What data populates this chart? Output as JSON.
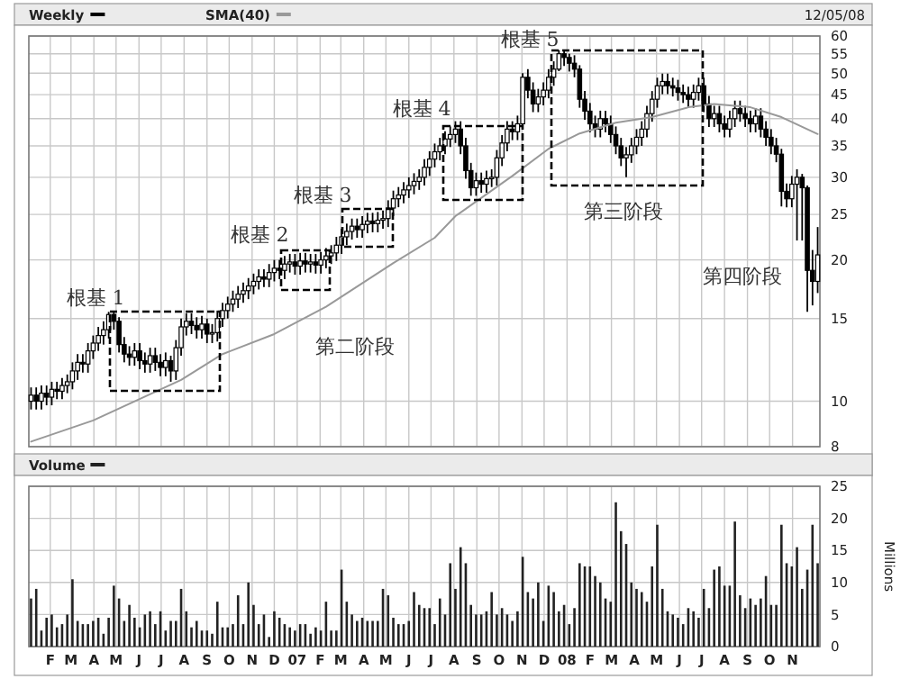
{
  "chart_data": [
    {
      "type": "candlestick",
      "log": true,
      "legend": "top left",
      "grid": true,
      "tick_labels": "y",
      "xlim": [
        "2006-01-03",
        "2008-12-08"
      ],
      "xticks": [
        {
          "value": "2006-02-01",
          "label": null
        },
        {
          "value": "2006-03-01",
          "label": null
        },
        {
          "value": "2006-04-01",
          "label": null
        },
        {
          "value": "2006-05-01",
          "label": null
        },
        {
          "value": "2006-06-01",
          "label": null
        },
        {
          "value": "2006-07-01",
          "label": null
        },
        {
          "value": "2006-08-01",
          "label": null
        },
        {
          "value": "2006-09-01",
          "label": null
        },
        {
          "value": "2006-10-01",
          "label": null
        },
        {
          "value": "2006-11-01",
          "label": null
        },
        {
          "value": "2006-12-01",
          "label": null
        },
        {
          "value": "2007-01-01",
          "label": null
        },
        {
          "value": "2007-02-01",
          "label": null
        },
        {
          "value": "2007-03-01",
          "label": null
        },
        {
          "value": "2007-04-01",
          "label": null
        },
        {
          "value": "2007-05-01",
          "label": null
        },
        {
          "value": "2007-06-01",
          "label": null
        },
        {
          "value": "2007-07-01",
          "label": null
        },
        {
          "value": "2007-08-01",
          "label": null
        },
        {
          "value": "2007-09-01",
          "label": null
        },
        {
          "value": "2007-10-01",
          "label": null
        },
        {
          "value": "2007-11-01",
          "label": null
        },
        {
          "value": "2007-12-01",
          "label": null
        },
        {
          "value": "2008-01-01",
          "label": null
        },
        {
          "value": "2008-02-01",
          "label": null
        },
        {
          "value": "2008-03-01",
          "label": null
        },
        {
          "value": "2008-04-01",
          "label": null
        },
        {
          "value": "2008-05-01",
          "label": null
        },
        {
          "value": "2008-06-01",
          "label": null
        },
        {
          "value": "2008-07-01",
          "label": null
        },
        {
          "value": "2008-08-01",
          "label": null
        },
        {
          "value": "2008-09-01",
          "label": null
        },
        {
          "value": "2008-10-01",
          "label": null
        },
        {
          "value": "2008-11-01",
          "label": null
        }
      ],
      "ylim": [
        8,
        60
      ],
      "yticks": [
        8,
        10,
        15,
        20,
        25,
        30,
        35,
        40,
        45,
        50,
        55,
        60
      ],
      "x": [
        "2006-01-06",
        "2006-01-13",
        "2006-01-20",
        "2006-01-27",
        "2006-02-03",
        "2006-02-10",
        "2006-02-17",
        "2006-02-24",
        "2006-03-03",
        "2006-03-10",
        "2006-03-17",
        "2006-03-24",
        "2006-03-31",
        "2006-04-07",
        "2006-04-14",
        "2006-04-21",
        "2006-04-28",
        "2006-05-05",
        "2006-05-12",
        "2006-05-19",
        "2006-05-26",
        "2006-06-02",
        "2006-06-09",
        "2006-06-16",
        "2006-06-23",
        "2006-06-30",
        "2006-07-07",
        "2006-07-14",
        "2006-07-21",
        "2006-07-28",
        "2006-08-04",
        "2006-08-11",
        "2006-08-18",
        "2006-08-25",
        "2006-09-01",
        "2006-09-08",
        "2006-09-15",
        "2006-09-22",
        "2006-09-29",
        "2006-10-06",
        "2006-10-13",
        "2006-10-20",
        "2006-10-27",
        "2006-11-03",
        "2006-11-10",
        "2006-11-17",
        "2006-11-24",
        "2006-12-01",
        "2006-12-08",
        "2006-12-15",
        "2006-12-22",
        "2006-12-29",
        "2007-01-05",
        "2007-01-12",
        "2007-01-19",
        "2007-01-26",
        "2007-02-02",
        "2007-02-09",
        "2007-02-16",
        "2007-02-23",
        "2007-03-02",
        "2007-03-09",
        "2007-03-16",
        "2007-03-23",
        "2007-03-30",
        "2007-04-06",
        "2007-04-13",
        "2007-04-20",
        "2007-04-27",
        "2007-05-04",
        "2007-05-11",
        "2007-05-18",
        "2007-05-25",
        "2007-06-01",
        "2007-06-08",
        "2007-06-15",
        "2007-06-22",
        "2007-06-29",
        "2007-07-06",
        "2007-07-13",
        "2007-07-20",
        "2007-07-27",
        "2007-08-03",
        "2007-08-10",
        "2007-08-17",
        "2007-08-24",
        "2007-08-31",
        "2007-09-07",
        "2007-09-14",
        "2007-09-21",
        "2007-09-28",
        "2007-10-05",
        "2007-10-12",
        "2007-10-19",
        "2007-10-26",
        "2007-11-02",
        "2007-11-09",
        "2007-11-16",
        "2007-11-23",
        "2007-11-30",
        "2007-12-07",
        "2007-12-14",
        "2007-12-21",
        "2007-12-28",
        "2008-01-04",
        "2008-01-11",
        "2008-01-18",
        "2008-01-25",
        "2008-02-01",
        "2008-02-08",
        "2008-02-15",
        "2008-02-22",
        "2008-02-29",
        "2008-03-07",
        "2008-03-14",
        "2008-03-21",
        "2008-03-28",
        "2008-04-04",
        "2008-04-11",
        "2008-04-18",
        "2008-04-25",
        "2008-05-02",
        "2008-05-09",
        "2008-05-16",
        "2008-05-23",
        "2008-05-30",
        "2008-06-06",
        "2008-06-13",
        "2008-06-20",
        "2008-06-27",
        "2008-07-04",
        "2008-07-11",
        "2008-07-18",
        "2008-07-25",
        "2008-08-01",
        "2008-08-08",
        "2008-08-15",
        "2008-08-22",
        "2008-08-29",
        "2008-09-05",
        "2008-09-12",
        "2008-09-19",
        "2008-09-26",
        "2008-10-03",
        "2008-10-10",
        "2008-10-17",
        "2008-10-24",
        "2008-10-31",
        "2008-11-07",
        "2008-11-14",
        "2008-11-21",
        "2008-11-28",
        "2008-12-05"
      ],
      "series": [
        {
          "name": "Weekly",
          "color": "#000000",
          "ohlc": [
            [
              10.0,
              10.7,
              9.6,
              10.3
            ],
            [
              10.3,
              10.7,
              9.6,
              10.0
            ],
            [
              10.0,
              10.8,
              9.6,
              10.4
            ],
            [
              10.4,
              10.8,
              9.8,
              10.2
            ],
            [
              10.2,
              11.0,
              9.8,
              10.6
            ],
            [
              10.6,
              11.0,
              10.1,
              10.5
            ],
            [
              10.5,
              11.2,
              10.1,
              10.8
            ],
            [
              10.8,
              11.4,
              10.4,
              11.0
            ],
            [
              11.0,
              12.1,
              10.6,
              11.6
            ],
            [
              11.6,
              12.6,
              11.1,
              12.1
            ],
            [
              12.1,
              12.6,
              11.5,
              12.0
            ],
            [
              12.0,
              13.3,
              11.5,
              12.8
            ],
            [
              12.8,
              13.8,
              12.3,
              13.3
            ],
            [
              13.3,
              14.4,
              12.8,
              13.8
            ],
            [
              13.8,
              14.8,
              13.2,
              14.2
            ],
            [
              14.2,
              15.5,
              13.6,
              15.3
            ],
            [
              15.3,
              15.5,
              14.2,
              14.8
            ],
            [
              14.8,
              15.1,
              12.7,
              13.2
            ],
            [
              13.2,
              13.7,
              12.1,
              12.6
            ],
            [
              12.6,
              13.1,
              11.9,
              12.4
            ],
            [
              12.4,
              13.3,
              11.9,
              12.8
            ],
            [
              12.8,
              13.3,
              11.7,
              12.2
            ],
            [
              12.2,
              12.7,
              11.5,
              12.0
            ],
            [
              12.0,
              13.0,
              11.5,
              12.5
            ],
            [
              12.5,
              13.0,
              11.6,
              12.1
            ],
            [
              12.1,
              12.6,
              11.3,
              11.8
            ],
            [
              11.8,
              12.7,
              11.3,
              12.2
            ],
            [
              12.2,
              12.5,
              11.0,
              11.6
            ],
            [
              11.6,
              13.5,
              11.1,
              13.0
            ],
            [
              13.0,
              15.0,
              12.5,
              14.4
            ],
            [
              14.4,
              15.4,
              13.8,
              14.8
            ],
            [
              14.8,
              15.4,
              13.9,
              14.5
            ],
            [
              14.5,
              15.1,
              13.6,
              14.2
            ],
            [
              14.2,
              15.2,
              13.6,
              14.6
            ],
            [
              14.6,
              15.0,
              13.3,
              13.9
            ],
            [
              13.9,
              14.6,
              13.3,
              14.0
            ],
            [
              14.0,
              15.6,
              13.4,
              15.0
            ],
            [
              15.0,
              16.2,
              14.4,
              15.6
            ],
            [
              15.6,
              16.7,
              15.0,
              16.1
            ],
            [
              16.1,
              17.2,
              15.5,
              16.5
            ],
            [
              16.5,
              17.6,
              15.8,
              16.9
            ],
            [
              16.9,
              17.9,
              16.2,
              17.2
            ],
            [
              17.2,
              18.3,
              16.5,
              17.6
            ],
            [
              17.6,
              18.7,
              16.9,
              18.0
            ],
            [
              18.0,
              19.1,
              17.3,
              18.4
            ],
            [
              18.4,
              19.1,
              17.5,
              18.2
            ],
            [
              18.2,
              19.6,
              17.5,
              18.8
            ],
            [
              18.8,
              20.0,
              18.0,
              19.2
            ],
            [
              19.2,
              20.0,
              18.2,
              19.0
            ],
            [
              19.0,
              20.4,
              18.2,
              19.6
            ],
            [
              19.6,
              20.6,
              18.8,
              19.8
            ],
            [
              19.8,
              20.6,
              18.6,
              19.4
            ],
            [
              19.4,
              20.7,
              18.6,
              19.9
            ],
            [
              19.9,
              20.7,
              18.8,
              19.6
            ],
            [
              19.6,
              20.6,
              18.8,
              19.8
            ],
            [
              19.8,
              20.6,
              18.7,
              19.5
            ],
            [
              19.5,
              20.8,
              18.7,
              20.0
            ],
            [
              20.0,
              21.2,
              19.2,
              20.4
            ],
            [
              20.4,
              21.5,
              19.6,
              20.7
            ],
            [
              20.7,
              22.4,
              19.9,
              21.5
            ],
            [
              21.5,
              23.3,
              20.6,
              22.4
            ],
            [
              22.4,
              23.9,
              21.5,
              23.0
            ],
            [
              23.0,
              24.5,
              22.1,
              23.6
            ],
            [
              23.6,
              24.5,
              22.3,
              23.2
            ],
            [
              23.2,
              24.8,
              22.3,
              23.8
            ],
            [
              23.8,
              25.2,
              22.8,
              24.2
            ],
            [
              24.2,
              25.2,
              22.9,
              23.9
            ],
            [
              23.9,
              25.3,
              22.9,
              24.3
            ],
            [
              24.3,
              25.5,
              23.3,
              24.5
            ],
            [
              24.5,
              26.8,
              23.5,
              25.8
            ],
            [
              25.8,
              28.1,
              24.8,
              27.0
            ],
            [
              27.0,
              28.6,
              25.9,
              27.5
            ],
            [
              27.5,
              29.3,
              26.4,
              28.2
            ],
            [
              28.2,
              30.0,
              27.1,
              28.8
            ],
            [
              28.8,
              30.6,
              27.6,
              29.4
            ],
            [
              29.4,
              31.2,
              28.2,
              30.0
            ],
            [
              30.0,
              32.8,
              28.8,
              31.5
            ],
            [
              31.5,
              34.1,
              30.2,
              32.8
            ],
            [
              32.8,
              35.4,
              31.5,
              34.0
            ],
            [
              34.0,
              36.4,
              32.6,
              35.0
            ],
            [
              35.0,
              37.6,
              33.6,
              36.2
            ],
            [
              36.2,
              38.5,
              34.8,
              37.0
            ],
            [
              37.0,
              39.5,
              35.5,
              38.0
            ],
            [
              38.0,
              39.5,
              33.6,
              35.0
            ],
            [
              35.0,
              36.4,
              29.8,
              31.0
            ],
            [
              31.0,
              32.2,
              27.4,
              28.5
            ],
            [
              28.5,
              30.7,
              27.4,
              29.5
            ],
            [
              29.5,
              30.7,
              27.8,
              29.0
            ],
            [
              29.0,
              31.0,
              27.8,
              29.8
            ],
            [
              29.8,
              31.2,
              28.6,
              30.0
            ],
            [
              30.0,
              34.3,
              28.8,
              33.0
            ],
            [
              33.0,
              36.9,
              31.7,
              35.5
            ],
            [
              35.5,
              39.5,
              34.1,
              38.0
            ],
            [
              38.0,
              39.5,
              36.0,
              37.5
            ],
            [
              37.5,
              40.6,
              36.0,
              39.0
            ],
            [
              39.0,
              50.0,
              38.5,
              49.0
            ],
            [
              49.0,
              51.0,
              44.2,
              46.0
            ],
            [
              46.0,
              47.8,
              41.3,
              43.0
            ],
            [
              43.0,
              46.3,
              41.3,
              44.5
            ],
            [
              44.5,
              47.8,
              42.7,
              46.0
            ],
            [
              46.0,
              51.0,
              44.2,
              49.0
            ],
            [
              49.0,
              53.0,
              47.0,
              51.0
            ],
            [
              51.0,
              56.0,
              50.5,
              55.0
            ],
            [
              55.0,
              56.0,
              51.8,
              54.0
            ],
            [
              54.0,
              55.0,
              50.4,
              52.5
            ],
            [
              52.5,
              54.6,
              49.0,
              51.0
            ],
            [
              51.0,
              52.0,
              42.2,
              44.0
            ],
            [
              44.0,
              45.8,
              39.8,
              41.5
            ],
            [
              41.5,
              43.2,
              37.4,
              39.0
            ],
            [
              39.0,
              40.6,
              36.5,
              38.0
            ],
            [
              38.0,
              41.6,
              36.5,
              40.0
            ],
            [
              40.0,
              41.6,
              37.4,
              39.0
            ],
            [
              39.0,
              40.6,
              35.5,
              37.0
            ],
            [
              37.0,
              38.5,
              33.6,
              35.0
            ],
            [
              35.0,
              36.4,
              31.7,
              33.0
            ],
            [
              33.0,
              34.8,
              30.0,
              33.5
            ],
            [
              33.5,
              36.4,
              32.2,
              35.0
            ],
            [
              35.0,
              38.0,
              33.6,
              36.5
            ],
            [
              36.5,
              39.5,
              35.0,
              38.0
            ],
            [
              38.0,
              42.6,
              36.5,
              41.0
            ],
            [
              41.0,
              45.8,
              39.4,
              44.0
            ],
            [
              44.0,
              48.9,
              42.2,
              47.0
            ],
            [
              47.0,
              49.9,
              45.1,
              48.0
            ],
            [
              48.0,
              49.9,
              45.1,
              47.0
            ],
            [
              47.0,
              48.9,
              44.6,
              46.5
            ],
            [
              46.5,
              48.4,
              43.7,
              45.5
            ],
            [
              45.5,
              47.3,
              43.2,
              45.0
            ],
            [
              45.0,
              46.8,
              42.2,
              44.0
            ],
            [
              44.0,
              47.3,
              42.2,
              45.5
            ],
            [
              45.5,
              48.9,
              43.7,
              47.0
            ],
            [
              47.0,
              48.9,
              41.3,
              43.0
            ],
            [
              43.0,
              44.7,
              38.4,
              40.0
            ],
            [
              40.0,
              42.6,
              38.4,
              41.0
            ],
            [
              41.0,
              42.6,
              37.4,
              39.0
            ],
            [
              39.0,
              40.6,
              36.5,
              38.0
            ],
            [
              38.0,
              41.6,
              36.5,
              40.0
            ],
            [
              40.0,
              43.7,
              38.4,
              42.0
            ],
            [
              42.0,
              43.7,
              39.4,
              41.0
            ],
            [
              41.0,
              42.6,
              38.4,
              40.0
            ],
            [
              40.0,
              41.6,
              37.4,
              39.0
            ],
            [
              39.0,
              42.1,
              37.4,
              40.5
            ],
            [
              40.5,
              42.1,
              36.5,
              38.0
            ],
            [
              38.0,
              39.5,
              35.0,
              36.5
            ],
            [
              36.5,
              38.0,
              33.6,
              35.0
            ],
            [
              35.0,
              36.4,
              32.3,
              33.6
            ],
            [
              33.6,
              34.5,
              26.0,
              28.0
            ],
            [
              28.0,
              29.1,
              25.9,
              27.0
            ],
            [
              27.0,
              30.2,
              25.9,
              29.0
            ],
            [
              29.0,
              31.2,
              22.0,
              30.0
            ],
            [
              30.0,
              30.5,
              22.0,
              28.5
            ],
            [
              28.5,
              28.8,
              15.5,
              19.0
            ],
            [
              19.0,
              21.0,
              16.0,
              18.0
            ],
            [
              18.0,
              23.5,
              17.0,
              20.5
            ]
          ]
        },
        {
          "name": "SMA(40)",
          "type": "line",
          "color": "#999999",
          "x": [
            "2006-01-06",
            "2006-03-31",
            "2006-07-28",
            "2006-09-22",
            "2006-12-01",
            "2007-02-09",
            "2007-05-11",
            "2007-07-06",
            "2007-08-03",
            "2007-10-19",
            "2007-12-07",
            "2008-01-18",
            "2008-03-07",
            "2008-04-25",
            "2008-06-13",
            "2008-07-18",
            "2008-09-05",
            "2008-10-17",
            "2008-12-05"
          ],
          "values": [
            8.2,
            9.1,
            11.1,
            12.6,
            13.9,
            15.9,
            19.7,
            22.3,
            24.8,
            30.2,
            34.5,
            37.2,
            39.2,
            40.3,
            42.3,
            43.0,
            42.3,
            40.3,
            37.1
          ]
        }
      ],
      "annotations": [
        "12/05/08",
        "根基 1",
        "根基 2",
        "根基 3",
        "根基 4",
        "根基 5",
        "第二阶段",
        "第三阶段",
        "第四阶段"
      ]
    },
    {
      "type": "bar",
      "legend": "top left",
      "grid": true,
      "ylabel": "Millions",
      "xlim": [
        "2006-01-03",
        "2008-12-08"
      ],
      "xticks": [
        {
          "value": "2006-02-01",
          "label": "F"
        },
        {
          "value": "2006-03-01",
          "label": "M"
        },
        {
          "value": "2006-04-01",
          "label": "A"
        },
        {
          "value": "2006-05-01",
          "label": "M"
        },
        {
          "value": "2006-06-01",
          "label": "J"
        },
        {
          "value": "2006-07-01",
          "label": "J"
        },
        {
          "value": "2006-08-01",
          "label": "A"
        },
        {
          "value": "2006-09-01",
          "label": "S"
        },
        {
          "value": "2006-10-01",
          "label": "O"
        },
        {
          "value": "2006-11-01",
          "label": "N"
        },
        {
          "value": "2006-12-01",
          "label": "D"
        },
        {
          "value": "2007-01-01",
          "label": "07"
        },
        {
          "value": "2007-02-01",
          "label": "F"
        },
        {
          "value": "2007-03-01",
          "label": "M"
        },
        {
          "value": "2007-04-01",
          "label": "A"
        },
        {
          "value": "2007-05-01",
          "label": "M"
        },
        {
          "value": "2007-06-01",
          "label": "J"
        },
        {
          "value": "2007-07-01",
          "label": "J"
        },
        {
          "value": "2007-08-01",
          "label": "A"
        },
        {
          "value": "2007-09-01",
          "label": "S"
        },
        {
          "value": "2007-10-01",
          "label": "O"
        },
        {
          "value": "2007-11-01",
          "label": "N"
        },
        {
          "value": "2007-12-01",
          "label": "D"
        },
        {
          "value": "2008-01-01",
          "label": "08"
        },
        {
          "value": "2008-02-01",
          "label": "F"
        },
        {
          "value": "2008-03-01",
          "label": "M"
        },
        {
          "value": "2008-04-01",
          "label": "A"
        },
        {
          "value": "2008-05-01",
          "label": "M"
        },
        {
          "value": "2008-06-01",
          "label": "J"
        },
        {
          "value": "2008-07-01",
          "label": "J"
        },
        {
          "value": "2008-08-01",
          "label": "A"
        },
        {
          "value": "2008-09-01",
          "label": "S"
        },
        {
          "value": "2008-10-01",
          "label": "O"
        },
        {
          "value": "2008-11-01",
          "label": "N"
        }
      ],
      "ylim": [
        0,
        25
      ],
      "yticks": [
        0,
        5,
        10,
        15,
        20,
        25
      ],
      "x": [
        "2006-01-06",
        "2006-01-13",
        "2006-01-20",
        "2006-01-27",
        "2006-02-03",
        "2006-02-10",
        "2006-02-17",
        "2006-02-24",
        "2006-03-03",
        "2006-03-10",
        "2006-03-17",
        "2006-03-24",
        "2006-03-31",
        "2006-04-07",
        "2006-04-14",
        "2006-04-21",
        "2006-04-28",
        "2006-05-05",
        "2006-05-12",
        "2006-05-19",
        "2006-05-26",
        "2006-06-02",
        "2006-06-09",
        "2006-06-16",
        "2006-06-23",
        "2006-06-30",
        "2006-07-07",
        "2006-07-14",
        "2006-07-21",
        "2006-07-28",
        "2006-08-04",
        "2006-08-11",
        "2006-08-18",
        "2006-08-25",
        "2006-09-01",
        "2006-09-08",
        "2006-09-15",
        "2006-09-22",
        "2006-09-29",
        "2006-10-06",
        "2006-10-13",
        "2006-10-20",
        "2006-10-27",
        "2006-11-03",
        "2006-11-10",
        "2006-11-17",
        "2006-11-24",
        "2006-12-01",
        "2006-12-08",
        "2006-12-15",
        "2006-12-22",
        "2006-12-29",
        "2007-01-05",
        "2007-01-12",
        "2007-01-19",
        "2007-01-26",
        "2007-02-02",
        "2007-02-09",
        "2007-02-16",
        "2007-02-23",
        "2007-03-02",
        "2007-03-09",
        "2007-03-16",
        "2007-03-23",
        "2007-03-30",
        "2007-04-06",
        "2007-04-13",
        "2007-04-20",
        "2007-04-27",
        "2007-05-04",
        "2007-05-11",
        "2007-05-18",
        "2007-05-25",
        "2007-06-01",
        "2007-06-08",
        "2007-06-15",
        "2007-06-22",
        "2007-06-29",
        "2007-07-06",
        "2007-07-13",
        "2007-07-20",
        "2007-07-27",
        "2007-08-03",
        "2007-08-10",
        "2007-08-17",
        "2007-08-24",
        "2007-08-31",
        "2007-09-07",
        "2007-09-14",
        "2007-09-21",
        "2007-09-28",
        "2007-10-05",
        "2007-10-12",
        "2007-10-19",
        "2007-10-26",
        "2007-11-02",
        "2007-11-09",
        "2007-11-16",
        "2007-11-23",
        "2007-11-30",
        "2007-12-07",
        "2007-12-14",
        "2007-12-21",
        "2007-12-28",
        "2008-01-04",
        "2008-01-11",
        "2008-01-18",
        "2008-01-25",
        "2008-02-01",
        "2008-02-08",
        "2008-02-15",
        "2008-02-22",
        "2008-02-29",
        "2008-03-07",
        "2008-03-14",
        "2008-03-21",
        "2008-03-28",
        "2008-04-04",
        "2008-04-11",
        "2008-04-18",
        "2008-04-25",
        "2008-05-02",
        "2008-05-09",
        "2008-05-16",
        "2008-05-23",
        "2008-05-30",
        "2008-06-06",
        "2008-06-13",
        "2008-06-20",
        "2008-06-27",
        "2008-07-04",
        "2008-07-11",
        "2008-07-18",
        "2008-07-25",
        "2008-08-01",
        "2008-08-08",
        "2008-08-15",
        "2008-08-22",
        "2008-08-29",
        "2008-09-05",
        "2008-09-12",
        "2008-09-19",
        "2008-09-26",
        "2008-10-03",
        "2008-10-10",
        "2008-10-17",
        "2008-10-24",
        "2008-10-31",
        "2008-11-07",
        "2008-11-14",
        "2008-11-21",
        "2008-11-28",
        "2008-12-05"
      ],
      "series": [
        {
          "name": "Volume",
          "color": "#222222",
          "values": [
            7.5,
            9,
            2.5,
            4.5,
            5,
            3,
            3.5,
            5,
            10.5,
            4,
            3.5,
            3.5,
            4,
            4.5,
            2,
            4.5,
            9.5,
            7.5,
            4,
            6.5,
            4.5,
            3,
            5,
            5.5,
            3.5,
            5.5,
            2.5,
            4,
            4,
            9,
            5.5,
            3,
            4,
            2.5,
            2.5,
            2,
            7,
            3,
            3,
            3.5,
            8,
            3.5,
            10,
            6.5,
            3.5,
            5,
            1.5,
            5.5,
            4.5,
            3.5,
            3,
            2.5,
            3.5,
            3.5,
            2,
            3,
            2.5,
            7,
            2.5,
            2.5,
            12,
            7,
            5,
            4,
            4.5,
            4,
            4,
            4,
            9,
            8,
            4.5,
            3.5,
            3.5,
            4,
            8.5,
            6.5,
            6,
            6,
            3.5,
            7.5,
            5,
            13,
            9,
            15.5,
            13,
            6.5,
            5,
            5,
            5.5,
            8.5,
            5,
            6,
            5,
            4,
            5.5,
            14,
            8.5,
            7.5,
            10,
            4,
            9.5,
            8.5,
            5.5,
            6.5,
            3.5,
            6,
            13,
            12.5,
            12.5,
            11,
            10,
            7.5,
            7,
            22.5,
            18,
            16,
            10,
            9,
            8.5,
            7,
            12.5,
            19,
            9,
            5.5,
            5,
            4.5,
            3.5,
            6,
            5.5,
            4.5,
            9,
            6,
            12,
            12.5,
            9.5,
            9.5,
            19.5,
            8,
            6,
            7.5,
            6.5,
            7.5,
            11,
            6.5,
            6.5,
            19,
            13,
            12.5,
            15.5,
            9,
            12,
            19,
            13
          ]
        }
      ]
    }
  ]
}
